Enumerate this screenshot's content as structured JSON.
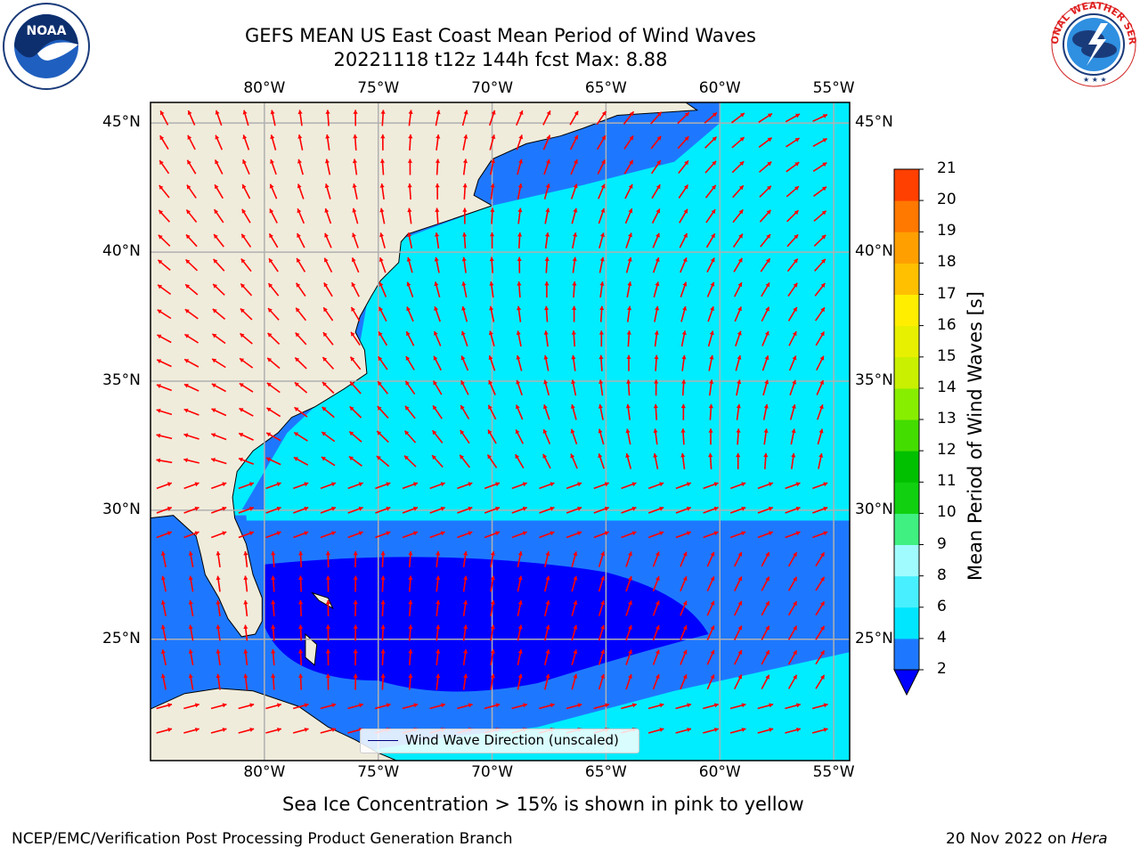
{
  "header": {
    "title_line1": "GEFS MEAN US East Coast Mean Period of Wind Waves",
    "title_line2": "20221118 t12z 144h fcst   Max: 8.88"
  },
  "logos": {
    "noaa_text": "NOAA",
    "noaa_ring": "NATIONAL OCEANIC AND ATMOSPHERIC ADMINISTRATION · U.S. DEPARTMENT OF COMMERCE",
    "nws_ring": "NATIONAL WEATHER SERVICE"
  },
  "map": {
    "lon_labels": [
      "80°W",
      "75°W",
      "70°W",
      "65°W",
      "60°W",
      "55°W"
    ],
    "lat_labels": [
      "45°N",
      "40°N",
      "35°N",
      "30°N",
      "25°N"
    ],
    "lon_values": [
      -80,
      -75,
      -70,
      -65,
      -60,
      -55
    ],
    "lat_values": [
      45,
      40,
      35,
      30,
      25
    ],
    "extent": {
      "lon_min": -85,
      "lon_max": -54.3,
      "lat_min": 20.3,
      "lat_max": 45.8
    },
    "legend_label": "Wind Wave Direction (unscaled)",
    "colors": {
      "land": "#efecdc",
      "coast": "#000000",
      "grid": "#b0b0b0",
      "arrow": "#ff0000"
    }
  },
  "colorbar": {
    "title": "Mean Period of Wind Waves [s]",
    "ticks": [
      "2",
      "4",
      "6",
      "8",
      "9",
      "10",
      "11",
      "12",
      "13",
      "14",
      "15",
      "16",
      "17",
      "18",
      "19",
      "20",
      "21"
    ],
    "levels": [
      2,
      4,
      6,
      8,
      9,
      10,
      11,
      12,
      13,
      14,
      15,
      16,
      17,
      18,
      19,
      20,
      21
    ],
    "colors": [
      "#1e78ff",
      "#00e6ff",
      "#48f0ff",
      "#a0fbff",
      "#40f080",
      "#10d010",
      "#00c000",
      "#44dd00",
      "#88ee00",
      "#c8f000",
      "#e6f000",
      "#ffee00",
      "#ffc000",
      "#ffa000",
      "#ff7800",
      "#ff4000",
      "#ff0000"
    ],
    "under_color": "#0000ff"
  },
  "footer": {
    "ice_note": "Sea Ice Concentration > 15% is shown in pink to yellow",
    "branch": "NCEP/EMC/Verification Post Processing Product Generation Branch",
    "date": "20 Nov 2022 on ",
    "machine": "Hera"
  }
}
